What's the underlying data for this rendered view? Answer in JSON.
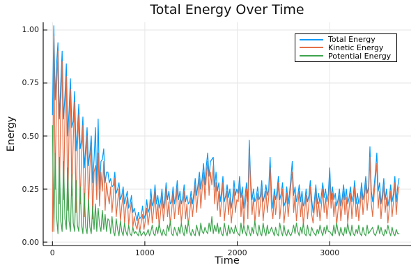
{
  "figure": {
    "background": "#FFFFFF",
    "grid_color": "#E6E6E6",
    "spine_color": "#000000",
    "text_color": "#111111"
  },
  "chart_data": {
    "type": "line",
    "title": "Total Energy Over Time",
    "xlabel": "Time",
    "ylabel": "Energy",
    "xlim": [
      -100,
      3880
    ],
    "ylim": [
      -0.016,
      1.036
    ],
    "grid": true,
    "legend_position": "top-right",
    "x_ticks": {
      "values": [
        0,
        1000,
        2000,
        3000
      ],
      "labels": [
        "0",
        "1000",
        "2000",
        "3000"
      ]
    },
    "y_ticks": {
      "values": [
        0,
        0.25,
        0.5,
        0.75,
        1.0
      ],
      "labels": [
        "0.00",
        "0.25",
        "0.50",
        "0.75",
        "1.00"
      ]
    },
    "x_start": 0,
    "x_step": 15,
    "n_points": 251,
    "series": [
      {
        "name": "Total Energy",
        "color": "#009AFA",
        "values": [
          0.6,
          1.02,
          0.67,
          0.84,
          0.94,
          0.58,
          0.75,
          0.9,
          0.58,
          0.69,
          0.84,
          0.5,
          0.62,
          0.77,
          0.54,
          0.57,
          0.71,
          0.43,
          0.53,
          0.65,
          0.44,
          0.48,
          0.59,
          0.35,
          0.45,
          0.54,
          0.36,
          0.42,
          0.5,
          0.28,
          0.39,
          0.54,
          0.25,
          0.58,
          0.25,
          0.38,
          0.39,
          0.44,
          0.28,
          0.33,
          0.33,
          0.28,
          0.3,
          0.26,
          0.27,
          0.33,
          0.23,
          0.25,
          0.28,
          0.2,
          0.22,
          0.26,
          0.18,
          0.21,
          0.24,
          0.16,
          0.18,
          0.22,
          0.14,
          0.16,
          0.13,
          0.1,
          0.14,
          0.11,
          0.12,
          0.17,
          0.11,
          0.13,
          0.2,
          0.14,
          0.16,
          0.25,
          0.17,
          0.19,
          0.27,
          0.18,
          0.22,
          0.16,
          0.19,
          0.25,
          0.16,
          0.2,
          0.28,
          0.2,
          0.24,
          0.18,
          0.19,
          0.26,
          0.18,
          0.22,
          0.29,
          0.2,
          0.24,
          0.18,
          0.21,
          0.27,
          0.19,
          0.22,
          0.18,
          0.19,
          0.24,
          0.18,
          0.23,
          0.3,
          0.22,
          0.27,
          0.33,
          0.25,
          0.3,
          0.37,
          0.27,
          0.36,
          0.42,
          0.31,
          0.38,
          0.39,
          0.4,
          0.26,
          0.33,
          0.24,
          0.28,
          0.19,
          0.24,
          0.31,
          0.19,
          0.22,
          0.27,
          0.21,
          0.25,
          0.16,
          0.21,
          0.29,
          0.22,
          0.25,
          0.23,
          0.31,
          0.21,
          0.26,
          0.16,
          0.22,
          0.28,
          0.19,
          0.48,
          0.29,
          0.2,
          0.25,
          0.19,
          0.21,
          0.26,
          0.2,
          0.22,
          0.29,
          0.19,
          0.22,
          0.27,
          0.22,
          0.25,
          0.4,
          0.23,
          0.16,
          0.25,
          0.2,
          0.24,
          0.31,
          0.2,
          0.23,
          0.28,
          0.17,
          0.19,
          0.26,
          0.18,
          0.23,
          0.3,
          0.38,
          0.22,
          0.26,
          0.19,
          0.22,
          0.27,
          0.19,
          0.24,
          0.17,
          0.19,
          0.25,
          0.19,
          0.22,
          0.29,
          0.2,
          0.14,
          0.2,
          0.27,
          0.18,
          0.23,
          0.18,
          0.22,
          0.28,
          0.21,
          0.25,
          0.19,
          0.23,
          0.35,
          0.2,
          0.26,
          0.2,
          0.23,
          0.17,
          0.2,
          0.25,
          0.17,
          0.21,
          0.27,
          0.2,
          0.25,
          0.18,
          0.21,
          0.26,
          0.19,
          0.22,
          0.29,
          0.18,
          0.23,
          0.18,
          0.21,
          0.28,
          0.2,
          0.24,
          0.31,
          0.23,
          0.26,
          0.45,
          0.24,
          0.19,
          0.26,
          0.33,
          0.42,
          0.24,
          0.28,
          0.18,
          0.23,
          0.3,
          0.2,
          0.25,
          0.17,
          0.21,
          0.27,
          0.19,
          0.23,
          0.31,
          0.19,
          0.26,
          0.3
        ]
      },
      {
        "name": "Kinetic Energy",
        "color": "#E36F47",
        "values": [
          0.05,
          0.97,
          0.25,
          0.72,
          0.9,
          0.18,
          0.65,
          0.85,
          0.2,
          0.58,
          0.78,
          0.15,
          0.52,
          0.72,
          0.22,
          0.48,
          0.66,
          0.14,
          0.45,
          0.6,
          0.18,
          0.4,
          0.55,
          0.12,
          0.38,
          0.5,
          0.16,
          0.35,
          0.46,
          0.11,
          0.33,
          0.36,
          0.2,
          0.42,
          0.17,
          0.33,
          0.24,
          0.38,
          0.15,
          0.28,
          0.22,
          0.18,
          0.26,
          0.14,
          0.22,
          0.3,
          0.12,
          0.19,
          0.25,
          0.1,
          0.17,
          0.23,
          0.09,
          0.16,
          0.21,
          0.08,
          0.14,
          0.19,
          0.07,
          0.12,
          0.08,
          0.06,
          0.11,
          0.05,
          0.09,
          0.13,
          0.06,
          0.1,
          0.16,
          0.08,
          0.13,
          0.2,
          0.09,
          0.15,
          0.24,
          0.11,
          0.18,
          0.07,
          0.14,
          0.22,
          0.1,
          0.16,
          0.25,
          0.12,
          0.19,
          0.08,
          0.15,
          0.23,
          0.11,
          0.17,
          0.26,
          0.13,
          0.2,
          0.09,
          0.16,
          0.24,
          0.11,
          0.18,
          0.08,
          0.14,
          0.21,
          0.12,
          0.19,
          0.27,
          0.14,
          0.22,
          0.3,
          0.16,
          0.25,
          0.33,
          0.2,
          0.31,
          0.38,
          0.22,
          0.33,
          0.27,
          0.36,
          0.18,
          0.28,
          0.15,
          0.24,
          0.12,
          0.2,
          0.28,
          0.1,
          0.17,
          0.24,
          0.13,
          0.21,
          0.09,
          0.16,
          0.25,
          0.14,
          0.2,
          0.19,
          0.28,
          0.12,
          0.22,
          0.08,
          0.17,
          0.25,
          0.11,
          0.43,
          0.26,
          0.13,
          0.21,
          0.09,
          0.16,
          0.23,
          0.12,
          0.18,
          0.26,
          0.1,
          0.17,
          0.24,
          0.14,
          0.21,
          0.35,
          0.16,
          0.11,
          0.22,
          0.13,
          0.2,
          0.28,
          0.11,
          0.18,
          0.25,
          0.09,
          0.15,
          0.23,
          0.12,
          0.19,
          0.27,
          0.33,
          0.14,
          0.22,
          0.1,
          0.17,
          0.24,
          0.12,
          0.2,
          0.08,
          0.15,
          0.22,
          0.11,
          0.18,
          0.26,
          0.13,
          0.09,
          0.16,
          0.24,
          0.12,
          0.19,
          0.1,
          0.17,
          0.25,
          0.14,
          0.21,
          0.11,
          0.18,
          0.3,
          0.16,
          0.23,
          0.12,
          0.19,
          0.08,
          0.15,
          0.22,
          0.1,
          0.17,
          0.24,
          0.13,
          0.21,
          0.09,
          0.16,
          0.23,
          0.11,
          0.18,
          0.26,
          0.12,
          0.19,
          0.1,
          0.17,
          0.25,
          0.13,
          0.2,
          0.28,
          0.15,
          0.22,
          0.4,
          0.18,
          0.12,
          0.22,
          0.3,
          0.37,
          0.16,
          0.24,
          0.11,
          0.19,
          0.27,
          0.14,
          0.21,
          0.09,
          0.16,
          0.24,
          0.12,
          0.19,
          0.28,
          0.13,
          0.22,
          0.26
        ]
      },
      {
        "name": "Potential Energy",
        "color": "#3EA44E",
        "values": [
          0.55,
          0.05,
          0.42,
          0.12,
          0.04,
          0.4,
          0.1,
          0.05,
          0.38,
          0.11,
          0.06,
          0.35,
          0.1,
          0.05,
          0.32,
          0.09,
          0.05,
          0.29,
          0.08,
          0.05,
          0.26,
          0.08,
          0.04,
          0.23,
          0.07,
          0.04,
          0.2,
          0.07,
          0.04,
          0.17,
          0.06,
          0.18,
          0.05,
          0.16,
          0.08,
          0.05,
          0.15,
          0.06,
          0.13,
          0.05,
          0.11,
          0.1,
          0.04,
          0.12,
          0.05,
          0.03,
          0.11,
          0.06,
          0.03,
          0.1,
          0.05,
          0.03,
          0.09,
          0.05,
          0.03,
          0.08,
          0.04,
          0.03,
          0.07,
          0.04,
          0.05,
          0.04,
          0.03,
          0.06,
          0.03,
          0.04,
          0.05,
          0.03,
          0.04,
          0.06,
          0.03,
          0.05,
          0.08,
          0.04,
          0.03,
          0.07,
          0.04,
          0.09,
          0.05,
          0.03,
          0.06,
          0.04,
          0.03,
          0.08,
          0.05,
          0.1,
          0.04,
          0.03,
          0.07,
          0.05,
          0.03,
          0.07,
          0.04,
          0.09,
          0.05,
          0.03,
          0.08,
          0.04,
          0.1,
          0.05,
          0.03,
          0.06,
          0.04,
          0.03,
          0.08,
          0.05,
          0.03,
          0.09,
          0.05,
          0.04,
          0.07,
          0.05,
          0.04,
          0.09,
          0.05,
          0.12,
          0.04,
          0.08,
          0.05,
          0.09,
          0.04,
          0.07,
          0.04,
          0.03,
          0.09,
          0.05,
          0.03,
          0.08,
          0.04,
          0.07,
          0.05,
          0.04,
          0.08,
          0.05,
          0.04,
          0.03,
          0.09,
          0.04,
          0.08,
          0.05,
          0.03,
          0.08,
          0.05,
          0.03,
          0.07,
          0.04,
          0.1,
          0.05,
          0.03,
          0.08,
          0.04,
          0.03,
          0.09,
          0.05,
          0.03,
          0.08,
          0.04,
          0.05,
          0.07,
          0.05,
          0.03,
          0.07,
          0.04,
          0.03,
          0.09,
          0.05,
          0.03,
          0.08,
          0.04,
          0.03,
          0.06,
          0.04,
          0.03,
          0.05,
          0.08,
          0.04,
          0.09,
          0.05,
          0.03,
          0.07,
          0.04,
          0.09,
          0.04,
          0.03,
          0.08,
          0.04,
          0.03,
          0.07,
          0.05,
          0.04,
          0.03,
          0.06,
          0.04,
          0.08,
          0.05,
          0.03,
          0.07,
          0.04,
          0.08,
          0.05,
          0.05,
          0.04,
          0.03,
          0.08,
          0.04,
          0.09,
          0.05,
          0.03,
          0.07,
          0.04,
          0.03,
          0.07,
          0.04,
          0.09,
          0.05,
          0.03,
          0.08,
          0.04,
          0.03,
          0.06,
          0.04,
          0.08,
          0.04,
          0.03,
          0.07,
          0.04,
          0.03,
          0.08,
          0.04,
          0.05,
          0.06,
          0.07,
          0.04,
          0.03,
          0.05,
          0.08,
          0.04,
          0.07,
          0.04,
          0.03,
          0.06,
          0.04,
          0.08,
          0.05,
          0.03,
          0.07,
          0.04,
          0.03,
          0.06,
          0.04,
          0.04
        ]
      }
    ]
  }
}
